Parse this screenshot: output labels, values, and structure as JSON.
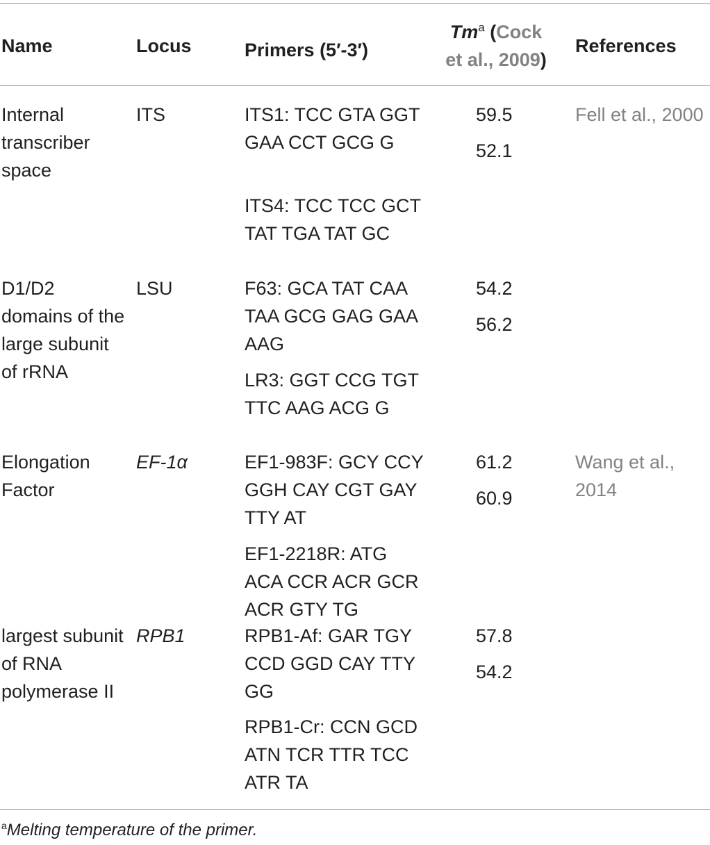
{
  "header": {
    "name": "Name",
    "locus": "Locus",
    "primers": "Primers (5′-3′)",
    "tm_label": "Tm",
    "tm_sup": "a",
    "tm_open": " (",
    "tm_cite_1": "Cock",
    "tm_cite_2": "et al., 2009",
    "tm_close": ")",
    "references": "References"
  },
  "rows": [
    {
      "name": "Internal transcriber space",
      "locus": "ITS",
      "primer_1": "ITS1: TCC GTA GGT GAA CCT GCG G",
      "primer_2": "ITS4: TCC TCC GCT TAT TGA TAT GC",
      "tm_1": "59.5",
      "tm_2": "52.1",
      "reference": "Fell et al., 2000"
    },
    {
      "name": "D1/D2 domains of the large subunit of rRNA",
      "locus": "LSU",
      "primer_1": "F63: GCA TAT CAA TAA GCG GAG GAA AAG",
      "primer_2": "LR3: GGT CCG TGT TTC AAG ACG G",
      "tm_1": "54.2",
      "tm_2": "56.2",
      "reference": ""
    },
    {
      "name": "Elongation Factor",
      "locus": "EF-1α",
      "primer_1": "EF1-983F: GCY CCY GGH CAY CGT GAY TTY AT",
      "primer_2": "EF1-2218R: ATG ACA CCR ACR GCR ACR GTY TG",
      "tm_1": "61.2",
      "tm_2": "60.9",
      "reference": "Wang et al.,\n2014"
    },
    {
      "name": "largest subunit of RNA polymerase II",
      "locus": "RPB1",
      "primer_1": "RPB1-Af: GAR TGY CCD GGD CAY TTY GG",
      "primer_2": "RPB1-Cr: CCN GCD ATN TCR TTR TCC ATR TA",
      "tm_1": "57.8",
      "tm_2": "54.2",
      "reference": ""
    }
  ],
  "footnote": {
    "marker": "a",
    "text": "Melting temperature of the primer."
  }
}
